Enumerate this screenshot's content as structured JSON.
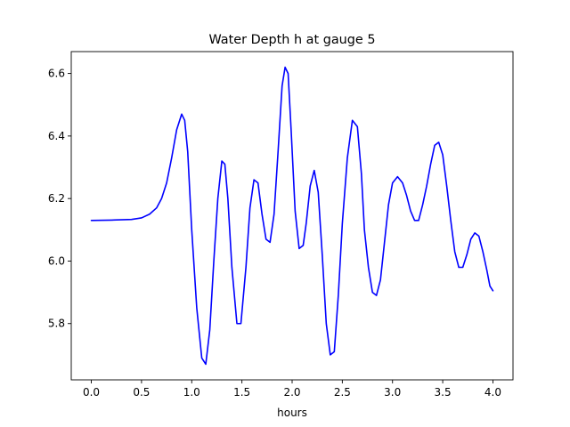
{
  "chart_data": {
    "type": "line",
    "title": "Water Depth h at gauge 5",
    "xlabel": "hours",
    "ylabel": "",
    "xlim": [
      -0.2,
      4.2
    ],
    "ylim": [
      5.62,
      6.67
    ],
    "x_ticks": [
      0.0,
      0.5,
      1.0,
      1.5,
      2.0,
      2.5,
      3.0,
      3.5,
      4.0
    ],
    "x_tick_labels": [
      "0.0",
      "0.5",
      "1.0",
      "1.5",
      "2.0",
      "2.5",
      "3.0",
      "3.5",
      "4.0"
    ],
    "y_ticks": [
      5.8,
      6.0,
      6.2,
      6.4,
      6.6
    ],
    "y_tick_labels": [
      "5.8",
      "6.0",
      "6.2",
      "6.4",
      "6.6"
    ],
    "grid": false,
    "series": [
      {
        "color": "#0000ff",
        "x": [
          0.0,
          0.2,
          0.4,
          0.5,
          0.58,
          0.65,
          0.7,
          0.75,
          0.8,
          0.85,
          0.9,
          0.93,
          0.96,
          1.0,
          1.05,
          1.1,
          1.14,
          1.18,
          1.22,
          1.26,
          1.3,
          1.33,
          1.36,
          1.4,
          1.45,
          1.49,
          1.54,
          1.58,
          1.62,
          1.66,
          1.7,
          1.74,
          1.78,
          1.82,
          1.86,
          1.9,
          1.93,
          1.96,
          1.99,
          2.03,
          2.07,
          2.11,
          2.14,
          2.18,
          2.22,
          2.26,
          2.3,
          2.34,
          2.38,
          2.42,
          2.46,
          2.5,
          2.55,
          2.6,
          2.65,
          2.69,
          2.72,
          2.76,
          2.8,
          2.84,
          2.88,
          2.92,
          2.96,
          3.0,
          3.05,
          3.1,
          3.14,
          3.18,
          3.22,
          3.26,
          3.3,
          3.34,
          3.38,
          3.42,
          3.46,
          3.5,
          3.54,
          3.58,
          3.62,
          3.66,
          3.7,
          3.74,
          3.78,
          3.82,
          3.86,
          3.9,
          3.94,
          3.97,
          4.0
        ],
        "y": [
          6.13,
          6.131,
          6.133,
          6.138,
          6.15,
          6.17,
          6.2,
          6.25,
          6.33,
          6.42,
          6.47,
          6.45,
          6.35,
          6.1,
          5.85,
          5.69,
          5.67,
          5.78,
          6.0,
          6.2,
          6.32,
          6.31,
          6.2,
          5.98,
          5.8,
          5.8,
          5.98,
          6.17,
          6.26,
          6.25,
          6.15,
          6.07,
          6.06,
          6.15,
          6.35,
          6.56,
          6.62,
          6.6,
          6.42,
          6.16,
          6.04,
          6.05,
          6.12,
          6.24,
          6.29,
          6.22,
          6.02,
          5.8,
          5.7,
          5.71,
          5.89,
          6.12,
          6.33,
          6.45,
          6.43,
          6.28,
          6.1,
          5.98,
          5.9,
          5.89,
          5.94,
          6.06,
          6.18,
          6.25,
          6.27,
          6.25,
          6.21,
          6.16,
          6.13,
          6.13,
          6.18,
          6.24,
          6.31,
          6.37,
          6.38,
          6.34,
          6.24,
          6.13,
          6.03,
          5.98,
          5.98,
          6.02,
          6.07,
          6.09,
          6.08,
          6.03,
          5.97,
          5.92,
          5.905
        ]
      }
    ]
  }
}
